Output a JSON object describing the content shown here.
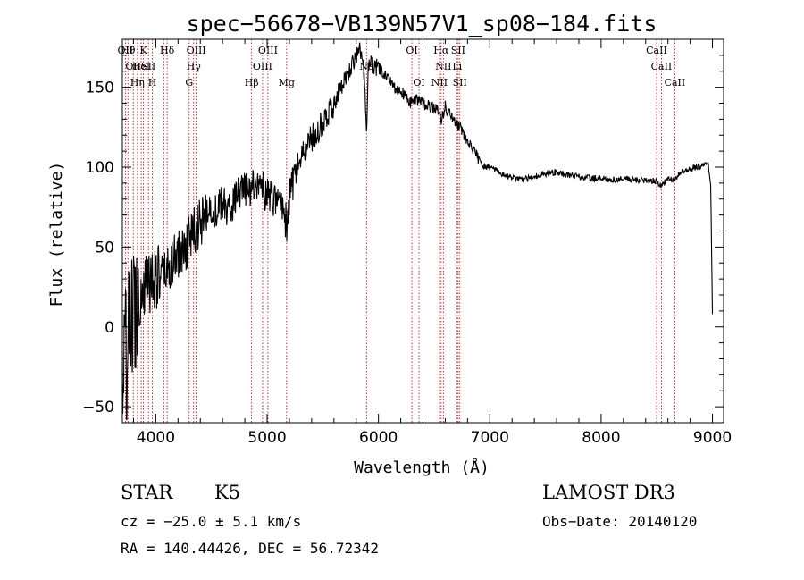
{
  "chart_data": {
    "type": "line",
    "title": "spec−56678−VB139N57V1_sp08−184.fits",
    "xlabel": "Wavelength (Å)",
    "ylabel": "Flux (relative)",
    "xlim": [
      3700,
      9100
    ],
    "ylim": [
      -60,
      180
    ],
    "xticks": [
      4000,
      5000,
      6000,
      7000,
      8000,
      9000
    ],
    "yticks": [
      -50,
      0,
      50,
      100,
      150
    ],
    "ytick_labels": [
      "−50",
      "0",
      "50",
      "100",
      "150"
    ],
    "series": [
      {
        "name": "flux",
        "color": "#000000",
        "x": [
          3700,
          3750,
          3800,
          3850,
          3900,
          3950,
          4000,
          4050,
          4100,
          4150,
          4200,
          4250,
          4300,
          4350,
          4400,
          4450,
          4500,
          4550,
          4600,
          4650,
          4700,
          4750,
          4800,
          4850,
          4900,
          4950,
          5000,
          5050,
          5100,
          5150,
          5180,
          5200,
          5250,
          5300,
          5350,
          5400,
          5450,
          5500,
          5550,
          5600,
          5650,
          5700,
          5750,
          5800,
          5830,
          5860,
          5880,
          5893,
          5905,
          5930,
          5960,
          6000,
          6050,
          6100,
          6150,
          6200,
          6250,
          6300,
          6350,
          6400,
          6450,
          6500,
          6550,
          6563,
          6600,
          6650,
          6700,
          6750,
          6800,
          6850,
          6900,
          6950,
          7000,
          7100,
          7200,
          7300,
          7400,
          7500,
          7600,
          7700,
          7800,
          7900,
          8000,
          8100,
          8200,
          8300,
          8400,
          8500,
          8540,
          8600,
          8662,
          8700,
          8800,
          8900,
          8960,
          8985,
          9000
        ],
        "y": [
          -30,
          -10,
          10,
          20,
          25,
          30,
          32,
          30,
          35,
          40,
          45,
          48,
          55,
          60,
          65,
          68,
          75,
          72,
          78,
          72,
          80,
          82,
          85,
          86,
          90,
          88,
          82,
          80,
          78,
          75,
          60,
          80,
          95,
          105,
          112,
          118,
          122,
          128,
          135,
          140,
          148,
          155,
          162,
          170,
          175,
          168,
          150,
          120,
          160,
          165,
          162,
          162,
          158,
          155,
          150,
          148,
          143,
          140,
          142,
          140,
          138,
          138,
          135,
          128,
          138,
          132,
          128,
          123,
          116,
          110,
          105,
          100,
          100,
          96,
          93,
          92,
          94,
          96,
          97,
          95,
          94,
          93,
          93,
          92,
          93,
          92,
          92,
          91,
          88,
          93,
          92,
          96,
          99,
          101,
          103,
          88,
          8
        ]
      }
    ],
    "lines": [
      {
        "wave": 3727,
        "top": "OII"
      },
      {
        "wave": 3750,
        "top": "Hθ"
      },
      {
        "wave": 3798,
        "mid": "OII"
      },
      {
        "wave": 3835,
        "bot": "Hη"
      },
      {
        "wave": 3869,
        "mid": "HeI"
      },
      {
        "wave": 3889,
        "top": "K"
      },
      {
        "wave": 3934,
        "mid": "SII"
      },
      {
        "wave": 3969,
        "bot": "H"
      },
      {
        "wave": 4072
      },
      {
        "wave": 4102,
        "top": "Hδ"
      },
      {
        "wave": 4300,
        "bot": "G"
      },
      {
        "wave": 4340,
        "mid": "Hγ"
      },
      {
        "wave": 4363,
        "top": "OIII"
      },
      {
        "wave": 4861,
        "bot": "Hβ"
      },
      {
        "wave": 4959,
        "mid": "OIII"
      },
      {
        "wave": 5007,
        "top": "OIII"
      },
      {
        "wave": 5175,
        "bot": "Mg"
      },
      {
        "wave": 5893,
        "mid": "Na"
      },
      {
        "wave": 6300,
        "top": "OI"
      },
      {
        "wave": 6364,
        "bot": "OI"
      },
      {
        "wave": 6548,
        "bot": "NII"
      },
      {
        "wave": 6563,
        "top": "Hα"
      },
      {
        "wave": 6583,
        "mid": "NII"
      },
      {
        "wave": 6707,
        "mid": "Li"
      },
      {
        "wave": 6716,
        "top": "SII"
      },
      {
        "wave": 6731,
        "bot": "SII"
      },
      {
        "wave": 8498,
        "top": "CaII"
      },
      {
        "wave": 8542,
        "mid": "CaII"
      },
      {
        "wave": 8662,
        "bot": "CaII"
      }
    ]
  },
  "info": {
    "object_class": "STAR",
    "subclass": "K5",
    "survey": "LAMOST DR3",
    "cz": "cz = −25.0 ± 5.1 km/s",
    "obs_date": "Obs−Date: 20140120",
    "coords": "RA = 140.44426, DEC =  56.72342"
  }
}
